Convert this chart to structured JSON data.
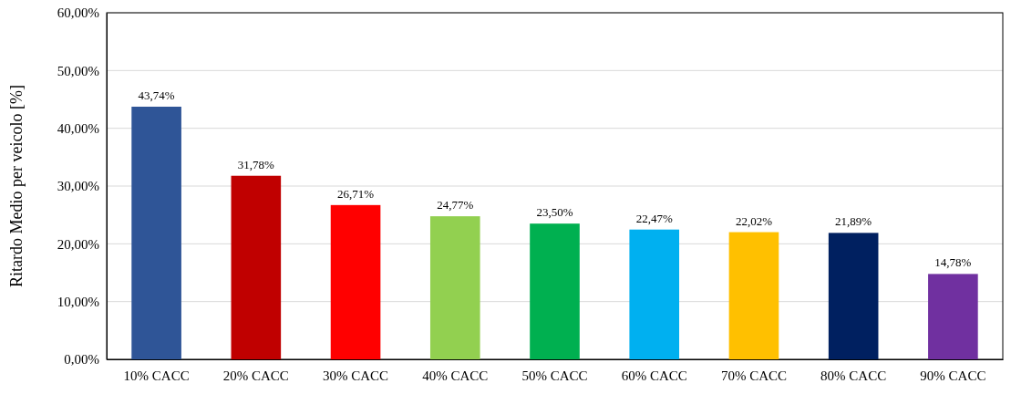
{
  "chart_data": {
    "type": "bar",
    "ylabel": "Ritardo Medio per veicolo [%]",
    "categories": [
      "10% CACC",
      "20% CACC",
      "30% CACC",
      "40% CACC",
      "50% CACC",
      "60% CACC",
      "70% CACC",
      "80% CACC",
      "90% CACC"
    ],
    "values": [
      43.74,
      31.78,
      26.71,
      24.77,
      23.5,
      22.47,
      22.02,
      21.89,
      14.78
    ],
    "colors": [
      "#2f5597",
      "#c00000",
      "#ff0000",
      "#92d050",
      "#00b050",
      "#00b0f0",
      "#ffc000",
      "#002060",
      "#7030a0"
    ],
    "value_labels": [
      "43,74%",
      "31,78%",
      "26,71%",
      "24,77%",
      "23,50%",
      "22,47%",
      "22,02%",
      "21,89%",
      "14,78%"
    ],
    "ylim": [
      0,
      60
    ],
    "yticks": [
      {
        "value": 0,
        "label": "0,00%"
      },
      {
        "value": 10,
        "label": "10,00%"
      },
      {
        "value": 20,
        "label": "20,00%"
      },
      {
        "value": 30,
        "label": "30,00%"
      },
      {
        "value": 40,
        "label": "40,00%"
      },
      {
        "value": 50,
        "label": "50,00%"
      },
      {
        "value": 60,
        "label": "60,00%"
      }
    ],
    "grid": "y"
  }
}
